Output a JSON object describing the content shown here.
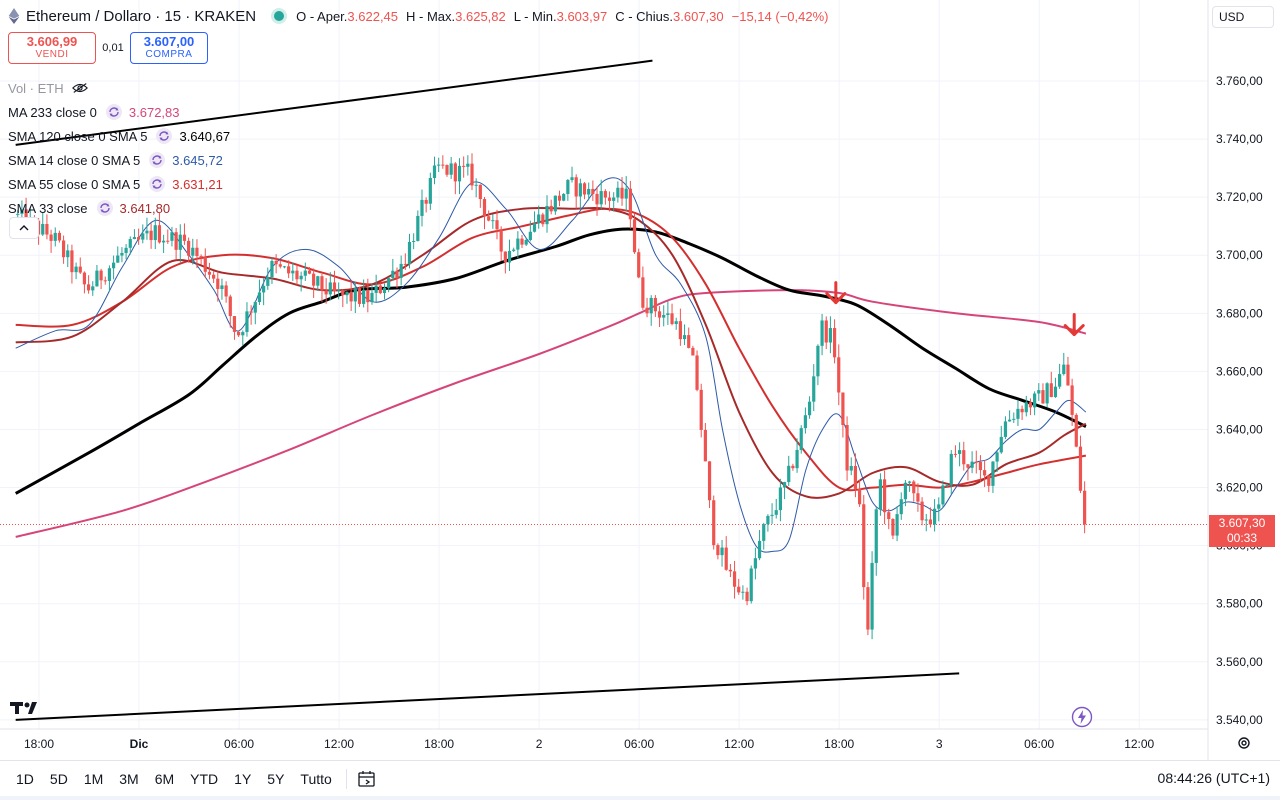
{
  "header": {
    "symbol": "Ethereum / Dollaro · 15 · KRAKEN",
    "open_label": "O - Aper.",
    "open": "3.622,45",
    "high_label": "H - Max.",
    "high": "3.625,82",
    "low_label": "L - Min.",
    "low": "3.603,97",
    "close_label": "C - Chius.",
    "close": "3.607,30",
    "change": "−15,14 (−0,42%)"
  },
  "trade": {
    "sell_price": "3.606,99",
    "sell_label": "VENDI",
    "spread": "0,01",
    "buy_price": "3.607,00",
    "buy_label": "COMPRA"
  },
  "indicators": {
    "vol": "Vol · ETH",
    "items": [
      {
        "name": "MA 233 close 0",
        "value": "3.672,83",
        "color": "#d6457a"
      },
      {
        "name": "SMA 120 close 0 SMA 5",
        "value": "3.640,67",
        "color": "#000000"
      },
      {
        "name": "SMA 14 close 0 SMA 5",
        "value": "3.645,72",
        "color": "#2e5aa8"
      },
      {
        "name": "SMA 55 close 0 SMA 5",
        "value": "3.631,21",
        "color": "#d32f2f"
      },
      {
        "name": "SMA 33 close",
        "value": "3.641,80",
        "color": "#a62a2a"
      }
    ]
  },
  "currency": "USD",
  "last_price": {
    "value": "3.607,30",
    "countdown": "00:33"
  },
  "bottom": {
    "ranges": [
      "1D",
      "5D",
      "1M",
      "3M",
      "6M",
      "YTD",
      "1Y",
      "5Y",
      "Tutto"
    ],
    "clock": "08:44:26 (UTC+1)"
  },
  "colors": {
    "up": "#26a69a",
    "down": "#ef5350",
    "text": "#131722"
  },
  "chart_data": {
    "type": "candlestick",
    "y_ticks": [
      {
        "v": 3760,
        "label": "3.760,00"
      },
      {
        "v": 3740,
        "label": "3.740,00"
      },
      {
        "v": 3720,
        "label": "3.720,00"
      },
      {
        "v": 3700,
        "label": "3.700,00"
      },
      {
        "v": 3680,
        "label": "3.680,00"
      },
      {
        "v": 3660,
        "label": "3.660,00"
      },
      {
        "v": 3640,
        "label": "3.640,00"
      },
      {
        "v": 3620,
        "label": "3.620,00"
      },
      {
        "v": 3600,
        "label": "3.600,00"
      },
      {
        "v": 3580,
        "label": "3.580,00"
      },
      {
        "v": 3560,
        "label": "3.560,00"
      },
      {
        "v": 3540,
        "label": "3.540,00"
      }
    ],
    "ylim": [
      3537,
      3783
    ],
    "x_ticks": [
      {
        "label": "18:00",
        "t": 0
      },
      {
        "label": "Dic",
        "t": 6
      },
      {
        "label": "06:00",
        "t": 12
      },
      {
        "label": "12:00",
        "t": 18
      },
      {
        "label": "18:00",
        "t": 24
      },
      {
        "label": "2",
        "t": 30
      },
      {
        "label": "06:00",
        "t": 36
      },
      {
        "label": "12:00",
        "t": 42
      },
      {
        "label": "18:00",
        "t": 48
      },
      {
        "label": "3",
        "t": 54
      },
      {
        "label": "06:00",
        "t": 60
      },
      {
        "label": "12:00",
        "t": 66
      }
    ],
    "xlim_hours": [
      -1.4,
      70
    ],
    "candle_hours": 0.25,
    "trend_path": [
      [
        -1.4,
        3714
      ],
      [
        1,
        3706
      ],
      [
        3,
        3688
      ],
      [
        5,
        3700
      ],
      [
        7,
        3708
      ],
      [
        9,
        3704
      ],
      [
        11,
        3690
      ],
      [
        12,
        3672
      ],
      [
        14,
        3696
      ],
      [
        16,
        3692
      ],
      [
        18,
        3686
      ],
      [
        20,
        3685
      ],
      [
        22,
        3698
      ],
      [
        24,
        3730
      ],
      [
        26,
        3728
      ],
      [
        28,
        3700
      ],
      [
        30,
        3712
      ],
      [
        32,
        3724
      ],
      [
        34,
        3720
      ],
      [
        35.5,
        3720
      ],
      [
        36.2,
        3685
      ],
      [
        37.5,
        3680
      ],
      [
        38.5,
        3676
      ],
      [
        39.5,
        3660
      ],
      [
        40.5,
        3605
      ],
      [
        41.5,
        3590
      ],
      [
        42.5,
        3582
      ],
      [
        43.5,
        3604
      ],
      [
        45,
        3622
      ],
      [
        46.3,
        3648
      ],
      [
        47,
        3676
      ],
      [
        47.8,
        3670
      ],
      [
        48.5,
        3630
      ],
      [
        49.3,
        3618
      ],
      [
        49.8,
        3566
      ],
      [
        50.5,
        3625
      ],
      [
        51.3,
        3600
      ],
      [
        52,
        3624
      ],
      [
        53,
        3610
      ],
      [
        54,
        3610
      ],
      [
        55,
        3633
      ],
      [
        56,
        3628
      ],
      [
        57,
        3622
      ],
      [
        58,
        3642
      ],
      [
        59,
        3648
      ],
      [
        60,
        3650
      ],
      [
        61,
        3655
      ],
      [
        61.7,
        3662
      ],
      [
        62.2,
        3640
      ],
      [
        62.8,
        3610
      ]
    ],
    "series": [
      {
        "name": "MA 233 close 0",
        "color": "#d6457a",
        "width": 2,
        "points": [
          [
            -1.4,
            3603
          ],
          [
            5,
            3612
          ],
          [
            10,
            3622
          ],
          [
            15,
            3633
          ],
          [
            20,
            3645
          ],
          [
            25,
            3656
          ],
          [
            30,
            3666
          ],
          [
            34,
            3675
          ],
          [
            36,
            3680
          ],
          [
            38,
            3685
          ],
          [
            40,
            3687
          ],
          [
            45,
            3688
          ],
          [
            48,
            3687
          ],
          [
            50,
            3684
          ],
          [
            55,
            3680
          ],
          [
            60,
            3677
          ],
          [
            62.8,
            3673
          ]
        ]
      },
      {
        "name": "SMA 120 close 0 SMA 5",
        "color": "#000000",
        "width": 3,
        "points": [
          [
            -1.4,
            3618
          ],
          [
            3,
            3632
          ],
          [
            6,
            3642
          ],
          [
            9,
            3652
          ],
          [
            11,
            3662
          ],
          [
            13,
            3672
          ],
          [
            15,
            3680
          ],
          [
            17,
            3684
          ],
          [
            19,
            3688
          ],
          [
            22,
            3689
          ],
          [
            25,
            3692
          ],
          [
            28,
            3698
          ],
          [
            31,
            3703
          ],
          [
            33,
            3707
          ],
          [
            35,
            3709
          ],
          [
            37,
            3708
          ],
          [
            39,
            3704
          ],
          [
            41,
            3699
          ],
          [
            43,
            3693
          ],
          [
            45,
            3688
          ],
          [
            47,
            3686
          ],
          [
            49,
            3683
          ],
          [
            51,
            3676
          ],
          [
            53,
            3668
          ],
          [
            55,
            3661
          ],
          [
            57,
            3654
          ],
          [
            59,
            3650
          ],
          [
            61,
            3646
          ],
          [
            62.8,
            3641
          ]
        ]
      },
      {
        "name": "SMA 55 close 0 SMA 5",
        "color": "#d32f2f",
        "width": 2,
        "points": [
          [
            -1.4,
            3676
          ],
          [
            2,
            3676
          ],
          [
            5,
            3684
          ],
          [
            8,
            3696
          ],
          [
            11,
            3700
          ],
          [
            14,
            3699
          ],
          [
            17,
            3694
          ],
          [
            20,
            3690
          ],
          [
            23,
            3696
          ],
          [
            26,
            3706
          ],
          [
            29,
            3710
          ],
          [
            32,
            3714
          ],
          [
            34,
            3716
          ],
          [
            36,
            3714
          ],
          [
            38,
            3706
          ],
          [
            40,
            3690
          ],
          [
            42,
            3668
          ],
          [
            44,
            3648
          ],
          [
            46,
            3632
          ],
          [
            48,
            3620
          ],
          [
            50,
            3620
          ],
          [
            52,
            3621
          ],
          [
            54,
            3620
          ],
          [
            56,
            3622
          ],
          [
            58,
            3625
          ],
          [
            60,
            3628
          ],
          [
            62.8,
            3631
          ]
        ]
      },
      {
        "name": "SMA 33 close",
        "color": "#a62a2a",
        "width": 2,
        "points": [
          [
            -1.4,
            3670
          ],
          [
            2,
            3672
          ],
          [
            5,
            3684
          ],
          [
            8,
            3698
          ],
          [
            11,
            3694
          ],
          [
            14,
            3692
          ],
          [
            17,
            3688
          ],
          [
            20,
            3690
          ],
          [
            23,
            3700
          ],
          [
            26,
            3712
          ],
          [
            29,
            3716
          ],
          [
            32,
            3716
          ],
          [
            34,
            3716
          ],
          [
            36,
            3712
          ],
          [
            38,
            3700
          ],
          [
            40,
            3676
          ],
          [
            42,
            3646
          ],
          [
            44,
            3625
          ],
          [
            46,
            3617
          ],
          [
            48,
            3618
          ],
          [
            50,
            3625
          ],
          [
            52,
            3627
          ],
          [
            54,
            3622
          ],
          [
            56,
            3621
          ],
          [
            58,
            3628
          ],
          [
            60,
            3632
          ],
          [
            61.5,
            3638
          ],
          [
            62.8,
            3642
          ]
        ]
      },
      {
        "name": "SMA 14 close 0 SMA 5",
        "color": "#2e5aa8",
        "width": 1,
        "points": [
          [
            -1.4,
            3668
          ],
          [
            1,
            3674
          ],
          [
            3,
            3676
          ],
          [
            5,
            3696
          ],
          [
            7,
            3712
          ],
          [
            9,
            3700
          ],
          [
            10.5,
            3688
          ],
          [
            12,
            3674
          ],
          [
            14,
            3696
          ],
          [
            16,
            3702
          ],
          [
            18,
            3696
          ],
          [
            20,
            3684
          ],
          [
            22,
            3690
          ],
          [
            24,
            3706
          ],
          [
            26,
            3725
          ],
          [
            28,
            3716
          ],
          [
            30,
            3702
          ],
          [
            32,
            3712
          ],
          [
            34,
            3726
          ],
          [
            35.5,
            3722
          ],
          [
            37,
            3700
          ],
          [
            38.5,
            3690
          ],
          [
            40,
            3672
          ],
          [
            41,
            3640
          ],
          [
            42,
            3615
          ],
          [
            43,
            3600
          ],
          [
            44,
            3598
          ],
          [
            45,
            3602
          ],
          [
            46,
            3626
          ],
          [
            47,
            3640
          ],
          [
            48,
            3645
          ],
          [
            49,
            3630
          ],
          [
            50,
            3615
          ],
          [
            51,
            3612
          ],
          [
            52,
            3615
          ],
          [
            53,
            3614
          ],
          [
            54,
            3612
          ],
          [
            55,
            3620
          ],
          [
            56,
            3628
          ],
          [
            57,
            3630
          ],
          [
            58,
            3636
          ],
          [
            59,
            3640
          ],
          [
            60,
            3640
          ],
          [
            61,
            3646
          ],
          [
            61.8,
            3650
          ],
          [
            62.8,
            3646
          ]
        ]
      }
    ],
    "trendlines": [
      {
        "from": [
          -1.4,
          3738
        ],
        "to": [
          36.8,
          3767
        ],
        "color": "#000000"
      },
      {
        "from": [
          -1.4,
          3540
        ],
        "to": [
          55.2,
          3556
        ],
        "color": "#000000"
      }
    ],
    "annotations": [
      {
        "type": "arrow-down",
        "t": 47.8,
        "y": 3683,
        "color": "#e53935"
      },
      {
        "type": "arrow-down",
        "t": 62.1,
        "y": 3672,
        "color": "#e53935"
      }
    ],
    "last_price_line": 3607.3
  }
}
